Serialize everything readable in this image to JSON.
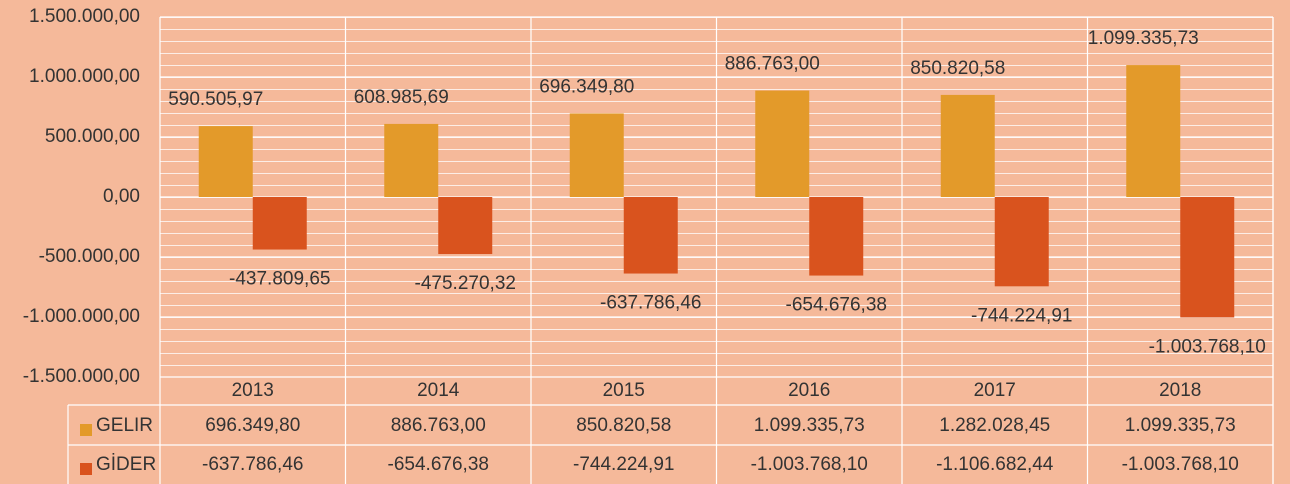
{
  "chart_data": {
    "type": "bar",
    "categories": [
      "2013",
      "2014",
      "2015",
      "2016",
      "2017",
      "2018"
    ],
    "series": [
      {
        "name": "GELIR",
        "color": "#e39a2a",
        "values": [
          590505.97,
          608985.69,
          696349.8,
          886763.0,
          850820.58,
          1099335.73
        ],
        "value_labels": [
          "590.505,97",
          "608.985,69",
          "696.349,80",
          "886.763,00",
          "850.820,58",
          "1.099.335,73"
        ]
      },
      {
        "name": "GİDER",
        "color": "#d9531e",
        "values": [
          -437809.65,
          -475270.32,
          -637786.46,
          -654676.38,
          -744224.91,
          -1003768.1
        ],
        "value_labels": [
          "-437.809,65",
          "-475.270,32",
          "-637.786,46",
          "-654.676,38",
          "-744.224,91",
          "-1.003.768,10"
        ]
      }
    ],
    "ylim": [
      -1500000,
      1500000
    ],
    "yticks": [
      {
        "value": -1500000,
        "label": "-1.500.000,00"
      },
      {
        "value": -1000000,
        "label": "-1.000.000,00"
      },
      {
        "value": -500000,
        "label": "-500.000,00"
      },
      {
        "value": 0,
        "label": "0,00"
      },
      {
        "value": 500000,
        "label": "500.000,00"
      },
      {
        "value": 1000000,
        "label": "1.000.000,00"
      },
      {
        "value": 1500000,
        "label": "1.500.000,00"
      }
    ],
    "grid": true,
    "table": [
      [
        "696.349,80",
        "886.763,00",
        "850.820,58",
        "1.099.335,73",
        "1.282.028,45",
        "1.099.335,73"
      ],
      [
        "-637.786,46",
        "-654.676,38",
        "-744.224,91",
        "-1.003.768,10",
        "-1.106.682,44",
        "-1.003.768,10"
      ]
    ]
  }
}
